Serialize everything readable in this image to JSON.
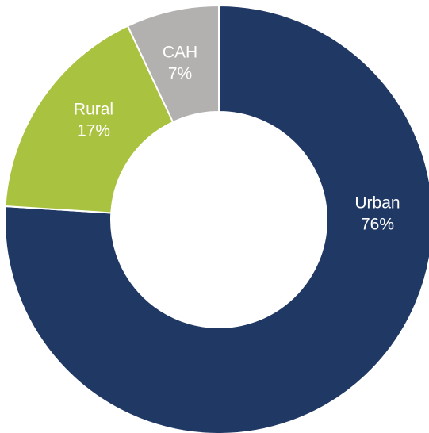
{
  "chart_data": {
    "type": "pie",
    "categories": [
      "Urban",
      "Rural",
      "CAH"
    ],
    "values": [
      76,
      17,
      7
    ],
    "value_labels": [
      "76%",
      "17%",
      "7%"
    ],
    "colors": [
      "#203864",
      "#a9c23f",
      "#b3b1af"
    ]
  }
}
